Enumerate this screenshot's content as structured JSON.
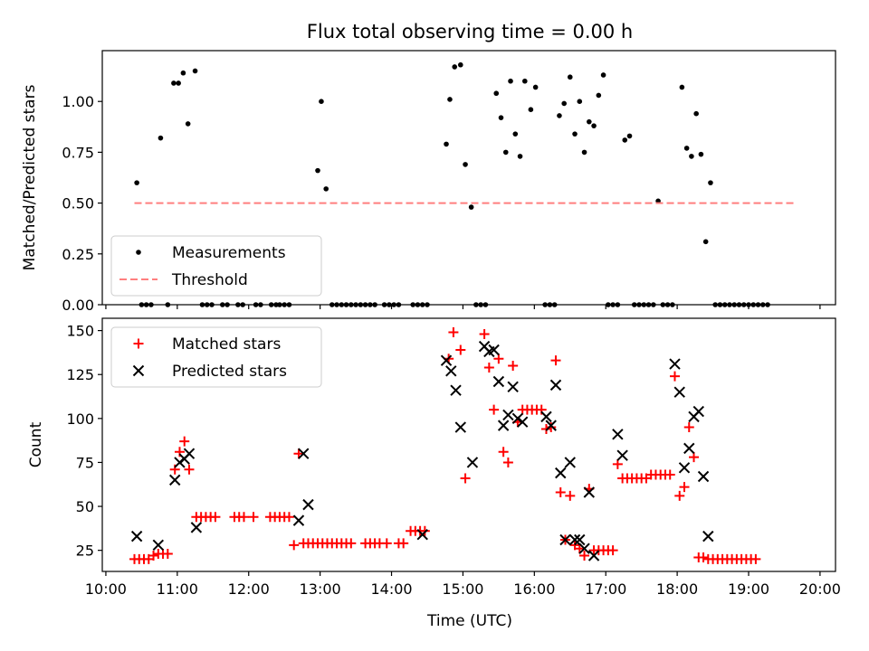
{
  "title": "Flux total observing time = 0.00 h",
  "x_axis": {
    "label": "Time (UTC)",
    "ticks": [
      {
        "value": 600,
        "label": "10:00"
      },
      {
        "value": 660,
        "label": "11:00"
      },
      {
        "value": 720,
        "label": "12:00"
      },
      {
        "value": 780,
        "label": "13:00"
      },
      {
        "value": 840,
        "label": "14:00"
      },
      {
        "value": 900,
        "label": "15:00"
      },
      {
        "value": 960,
        "label": "16:00"
      },
      {
        "value": 1020,
        "label": "17:00"
      },
      {
        "value": 1080,
        "label": "18:00"
      },
      {
        "value": 1140,
        "label": "19:00"
      },
      {
        "value": 1200,
        "label": "20:00"
      }
    ],
    "xlim": [
      597,
      1213
    ]
  },
  "chart_data": [
    {
      "type": "scatter",
      "ylabel": "Matched/Predicted stars",
      "ylim": [
        0,
        1.25
      ],
      "yticks": [
        "0.00",
        "0.25",
        "0.50",
        "0.75",
        "1.00"
      ],
      "ytick_values": [
        0,
        0.25,
        0.5,
        0.75,
        1.0
      ],
      "legend_position": "lower-left",
      "series": [
        {
          "name": "Measurements",
          "style": "dot",
          "color": "#000000",
          "points": [
            [
              626,
              0.6
            ],
            [
              630,
              0
            ],
            [
              634,
              0
            ],
            [
              638,
              0
            ],
            [
              646,
              0.82
            ],
            [
              652,
              0
            ],
            [
              657,
              1.09
            ],
            [
              661,
              1.09
            ],
            [
              665,
              1.14
            ],
            [
              669,
              0.89
            ],
            [
              675,
              1.15
            ],
            [
              681,
              0
            ],
            [
              685,
              0
            ],
            [
              689,
              0
            ],
            [
              698,
              0
            ],
            [
              702,
              0
            ],
            [
              711,
              0
            ],
            [
              715,
              0
            ],
            [
              726,
              0
            ],
            [
              730,
              0
            ],
            [
              739,
              0
            ],
            [
              743,
              0
            ],
            [
              746,
              0
            ],
            [
              750,
              0
            ],
            [
              754,
              0
            ],
            [
              778,
              0.66
            ],
            [
              781,
              1.0
            ],
            [
              785,
              0.57
            ],
            [
              790,
              0
            ],
            [
              794,
              0
            ],
            [
              798,
              0
            ],
            [
              802,
              0
            ],
            [
              806,
              0
            ],
            [
              810,
              0
            ],
            [
              814,
              0
            ],
            [
              818,
              0
            ],
            [
              822,
              0
            ],
            [
              826,
              0
            ],
            [
              834,
              0
            ],
            [
              838,
              0
            ],
            [
              842,
              0
            ],
            [
              846,
              0
            ],
            [
              858,
              0
            ],
            [
              862,
              0
            ],
            [
              866,
              0
            ],
            [
              870,
              0
            ],
            [
              886,
              0.79
            ],
            [
              889,
              1.01
            ],
            [
              893,
              1.17
            ],
            [
              898,
              1.18
            ],
            [
              902,
              0.69
            ],
            [
              907,
              0.48
            ],
            [
              911,
              0
            ],
            [
              915,
              0
            ],
            [
              919,
              0
            ],
            [
              928,
              1.04
            ],
            [
              932,
              0.92
            ],
            [
              936,
              0.75
            ],
            [
              940,
              1.1
            ],
            [
              944,
              0.84
            ],
            [
              948,
              0.73
            ],
            [
              952,
              1.1
            ],
            [
              957,
              0.96
            ],
            [
              961,
              1.07
            ],
            [
              969,
              0
            ],
            [
              973,
              0
            ],
            [
              977,
              0
            ],
            [
              981,
              0.93
            ],
            [
              985,
              0.99
            ],
            [
              990,
              1.12
            ],
            [
              994,
              0.84
            ],
            [
              998,
              1.0
            ],
            [
              1002,
              0.75
            ],
            [
              1006,
              0.9
            ],
            [
              1010,
              0.88
            ],
            [
              1014,
              1.03
            ],
            [
              1018,
              1.13
            ],
            [
              1022,
              0
            ],
            [
              1026,
              0
            ],
            [
              1030,
              0
            ],
            [
              1036,
              0.81
            ],
            [
              1040,
              0.83
            ],
            [
              1044,
              0
            ],
            [
              1048,
              0
            ],
            [
              1052,
              0
            ],
            [
              1056,
              0
            ],
            [
              1060,
              0
            ],
            [
              1064,
              0.51
            ],
            [
              1068,
              0
            ],
            [
              1072,
              0
            ],
            [
              1076,
              0
            ],
            [
              1084,
              1.07
            ],
            [
              1088,
              0.77
            ],
            [
              1092,
              0.73
            ],
            [
              1096,
              0.94
            ],
            [
              1100,
              0.74
            ],
            [
              1104,
              0.31
            ],
            [
              1108,
              0.6
            ],
            [
              1112,
              0
            ],
            [
              1116,
              0
            ],
            [
              1120,
              0
            ],
            [
              1124,
              0
            ],
            [
              1128,
              0
            ],
            [
              1132,
              0
            ],
            [
              1136,
              0
            ],
            [
              1140,
              0
            ],
            [
              1144,
              0
            ],
            [
              1148,
              0
            ],
            [
              1152,
              0
            ],
            [
              1156,
              0
            ]
          ]
        },
        {
          "name": "Threshold",
          "style": "dashed",
          "color": "#ff7f7f",
          "points": [
            [
              624,
              0.5
            ],
            [
              1180,
              0.5
            ]
          ]
        }
      ]
    },
    {
      "type": "scatter",
      "ylabel": "Count",
      "ylim": [
        13,
        157
      ],
      "yticks": [
        "25",
        "50",
        "75",
        "100",
        "125",
        "150"
      ],
      "ytick_values": [
        25,
        50,
        75,
        100,
        125,
        150
      ],
      "legend_position": "upper-left",
      "series": [
        {
          "name": "Matched stars",
          "marker": "+",
          "color": "#ff0000",
          "points": [
            [
              624,
              20
            ],
            [
              628,
              20
            ],
            [
              632,
              20
            ],
            [
              636,
              20
            ],
            [
              640,
              22
            ],
            [
              644,
              23
            ],
            [
              648,
              23
            ],
            [
              652,
              23
            ],
            [
              658,
              71
            ],
            [
              662,
              81
            ],
            [
              666,
              87
            ],
            [
              670,
              71
            ],
            [
              676,
              44
            ],
            [
              680,
              44
            ],
            [
              684,
              44
            ],
            [
              688,
              44
            ],
            [
              692,
              44
            ],
            [
              708,
              44
            ],
            [
              712,
              44
            ],
            [
              716,
              44
            ],
            [
              724,
              44
            ],
            [
              738,
              44
            ],
            [
              742,
              44
            ],
            [
              746,
              44
            ],
            [
              750,
              44
            ],
            [
              754,
              44
            ],
            [
              758,
              28
            ],
            [
              762,
              80
            ],
            [
              766,
              29
            ],
            [
              770,
              29
            ],
            [
              774,
              29
            ],
            [
              778,
              29
            ],
            [
              782,
              29
            ],
            [
              786,
              29
            ],
            [
              790,
              29
            ],
            [
              794,
              29
            ],
            [
              798,
              29
            ],
            [
              802,
              29
            ],
            [
              806,
              29
            ],
            [
              818,
              29
            ],
            [
              822,
              29
            ],
            [
              826,
              29
            ],
            [
              830,
              29
            ],
            [
              836,
              29
            ],
            [
              846,
              29
            ],
            [
              850,
              29
            ],
            [
              856,
              36
            ],
            [
              860,
              36
            ],
            [
              864,
              36
            ],
            [
              868,
              36
            ],
            [
              888,
              134
            ],
            [
              892,
              149
            ],
            [
              898,
              139
            ],
            [
              902,
              66
            ],
            [
              918,
              148
            ],
            [
              922,
              129
            ],
            [
              926,
              105
            ],
            [
              930,
              134
            ],
            [
              934,
              81
            ],
            [
              938,
              75
            ],
            [
              942,
              130
            ],
            [
              946,
              98
            ],
            [
              950,
              105
            ],
            [
              954,
              105
            ],
            [
              958,
              105
            ],
            [
              962,
              105
            ],
            [
              966,
              105
            ],
            [
              970,
              94
            ],
            [
              974,
              95
            ],
            [
              978,
              133
            ],
            [
              982,
              58
            ],
            [
              986,
              31
            ],
            [
              990,
              56
            ],
            [
              994,
              28
            ],
            [
              998,
              26
            ],
            [
              1002,
              22
            ],
            [
              1006,
              60
            ],
            [
              1010,
              25
            ],
            [
              1014,
              25
            ],
            [
              1018,
              25
            ],
            [
              1022,
              25
            ],
            [
              1026,
              25
            ],
            [
              1030,
              74
            ],
            [
              1034,
              66
            ],
            [
              1038,
              66
            ],
            [
              1042,
              66
            ],
            [
              1046,
              66
            ],
            [
              1050,
              66
            ],
            [
              1054,
              66
            ],
            [
              1058,
              68
            ],
            [
              1062,
              68
            ],
            [
              1066,
              68
            ],
            [
              1070,
              68
            ],
            [
              1074,
              68
            ],
            [
              1078,
              124
            ],
            [
              1082,
              56
            ],
            [
              1086,
              61
            ],
            [
              1090,
              95
            ],
            [
              1094,
              78
            ],
            [
              1098,
              21
            ],
            [
              1102,
              21
            ],
            [
              1106,
              20
            ],
            [
              1110,
              20
            ],
            [
              1114,
              20
            ],
            [
              1118,
              20
            ],
            [
              1122,
              20
            ],
            [
              1126,
              20
            ],
            [
              1130,
              20
            ],
            [
              1134,
              20
            ],
            [
              1138,
              20
            ],
            [
              1142,
              20
            ],
            [
              1146,
              20
            ]
          ]
        },
        {
          "name": "Predicted stars",
          "marker": "x",
          "color": "#000000",
          "points": [
            [
              626,
              33
            ],
            [
              644,
              28
            ],
            [
              658,
              65
            ],
            [
              662,
              75
            ],
            [
              666,
              77
            ],
            [
              670,
              80
            ],
            [
              676,
              38
            ],
            [
              762,
              42
            ],
            [
              766,
              80
            ],
            [
              770,
              51
            ],
            [
              866,
              34
            ],
            [
              886,
              133
            ],
            [
              890,
              127
            ],
            [
              894,
              116
            ],
            [
              898,
              95
            ],
            [
              908,
              75
            ],
            [
              918,
              141
            ],
            [
              922,
              138
            ],
            [
              926,
              139
            ],
            [
              930,
              121
            ],
            [
              934,
              96
            ],
            [
              938,
              102
            ],
            [
              942,
              118
            ],
            [
              946,
              100
            ],
            [
              950,
              98
            ],
            [
              970,
              101
            ],
            [
              974,
              96
            ],
            [
              978,
              119
            ],
            [
              982,
              69
            ],
            [
              986,
              31
            ],
            [
              990,
              75
            ],
            [
              994,
              31
            ],
            [
              998,
              31
            ],
            [
              1002,
              26
            ],
            [
              1006,
              58
            ],
            [
              1010,
              22
            ],
            [
              1030,
              91
            ],
            [
              1034,
              79
            ],
            [
              1078,
              131
            ],
            [
              1082,
              115
            ],
            [
              1086,
              72
            ],
            [
              1090,
              83
            ],
            [
              1094,
              101
            ],
            [
              1098,
              104
            ],
            [
              1102,
              67
            ],
            [
              1106,
              33
            ]
          ]
        }
      ]
    }
  ]
}
